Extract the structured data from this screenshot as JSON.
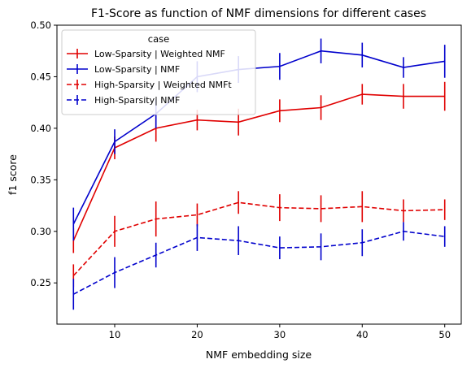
{
  "chart_data": {
    "type": "line",
    "title": "F1-Score as function of NMF dimensions for different cases",
    "xlabel": "NMF embedding size",
    "ylabel": "f1 score",
    "xlim": [
      3,
      52
    ],
    "ylim": [
      0.21,
      0.5
    ],
    "xticks": [
      10,
      20,
      30,
      40,
      50
    ],
    "yticks": [
      0.25,
      0.3,
      0.35,
      0.4,
      0.45,
      0.5
    ],
    "ytick_labels": [
      "0.25",
      "0.30",
      "0.35",
      "0.40",
      "0.45",
      "0.50"
    ],
    "grid": false,
    "legend": {
      "title": "case",
      "position": "top-left"
    },
    "x": [
      5,
      10,
      15,
      20,
      25,
      30,
      35,
      40,
      45,
      50
    ],
    "series": [
      {
        "name": "Low-Sparsity | Weighted NMF",
        "color": "#e00000",
        "dash": "solid",
        "values": [
          0.291,
          0.381,
          0.4,
          0.408,
          0.406,
          0.417,
          0.42,
          0.433,
          0.431,
          0.431
        ],
        "errors": [
          0.012,
          0.011,
          0.013,
          0.01,
          0.013,
          0.011,
          0.012,
          0.01,
          0.012,
          0.014
        ]
      },
      {
        "name": "Low-Sparsity | NMF",
        "color": "#0000cc",
        "dash": "solid",
        "values": [
          0.307,
          0.387,
          0.414,
          0.45,
          0.457,
          0.46,
          0.475,
          0.471,
          0.459,
          0.465
        ],
        "errors": [
          0.016,
          0.012,
          0.014,
          0.015,
          0.013,
          0.013,
          0.012,
          0.012,
          0.01,
          0.016
        ]
      },
      {
        "name": "High-Sparsity | Weighted NMFt",
        "color": "#e00000",
        "dash": "dashed",
        "values": [
          0.257,
          0.3,
          0.312,
          0.316,
          0.328,
          0.323,
          0.322,
          0.324,
          0.32,
          0.321
        ],
        "errors": [
          0.011,
          0.015,
          0.017,
          0.011,
          0.011,
          0.013,
          0.013,
          0.015,
          0.011,
          0.01
        ]
      },
      {
        "name": "High-Sparsity| NMF",
        "color": "#0000cc",
        "dash": "dashed",
        "values": [
          0.239,
          0.26,
          0.277,
          0.294,
          0.291,
          0.284,
          0.285,
          0.289,
          0.3,
          0.295
        ],
        "errors": [
          0.015,
          0.015,
          0.012,
          0.013,
          0.014,
          0.011,
          0.013,
          0.013,
          0.009,
          0.01
        ]
      }
    ]
  }
}
